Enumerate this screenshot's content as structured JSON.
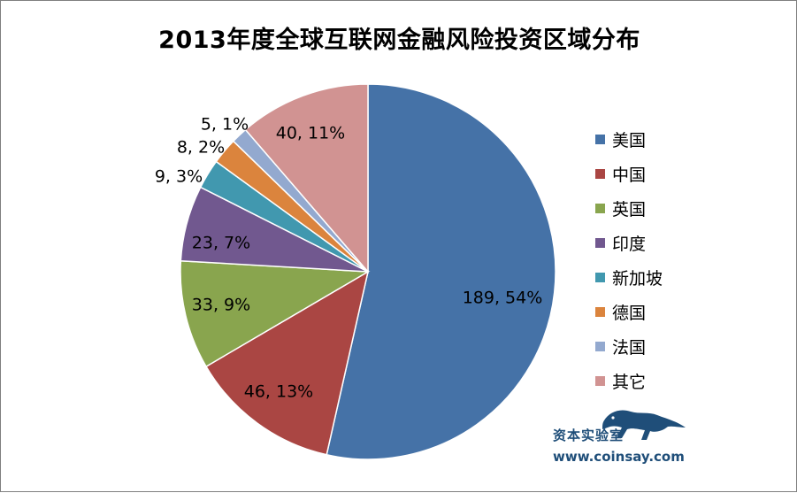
{
  "title": "2013年度全球互联网金融风险投资区域分布",
  "chart_data": {
    "type": "pie",
    "title": "2013年度全球互联网金融风险投资区域分布",
    "legend_position": "right",
    "slices": [
      {
        "name": "美国",
        "value": 189,
        "percent": "54%",
        "label": "189, 54%",
        "color": "#4572a7"
      },
      {
        "name": "中国",
        "value": 46,
        "percent": "13%",
        "label": "46, 13%",
        "color": "#aa4643"
      },
      {
        "name": "英国",
        "value": 33,
        "percent": "9%",
        "label": "33, 9%",
        "color": "#89a54e"
      },
      {
        "name": "印度",
        "value": 23,
        "percent": "7%",
        "label": "23, 7%",
        "color": "#71588f"
      },
      {
        "name": "新加坡",
        "value": 9,
        "percent": "3%",
        "label": "9, 3%",
        "color": "#4198af"
      },
      {
        "name": "德国",
        "value": 8,
        "percent": "2%",
        "label": "8, 2%",
        "color": "#db843d"
      },
      {
        "name": "法国",
        "value": 5,
        "percent": "1%",
        "label": "5, 1%",
        "color": "#93a9cf"
      },
      {
        "name": "其它",
        "value": 40,
        "percent": "11%",
        "label": "40, 11%",
        "color": "#d19392"
      }
    ]
  },
  "watermark": {
    "name": "资本实验室",
    "url": "www.coinsay.com",
    "icon": "panther-icon"
  }
}
